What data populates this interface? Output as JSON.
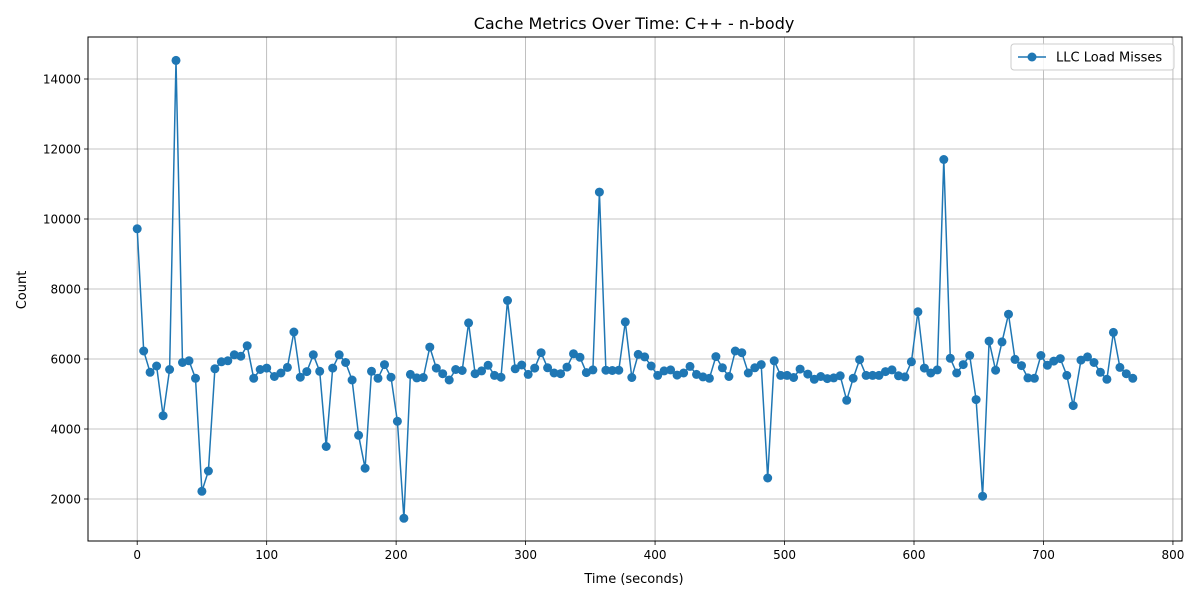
{
  "chart_data": {
    "type": "line",
    "title": "Cache Metrics Over Time: C++ - n-body",
    "xlabel": "Time (seconds)",
    "ylabel": "Count",
    "xlim": [
      -38,
      807
    ],
    "ylim": [
      800,
      15200
    ],
    "x_ticks": [
      0,
      100,
      200,
      300,
      400,
      500,
      600,
      700,
      800
    ],
    "y_ticks": [
      2000,
      4000,
      6000,
      8000,
      10000,
      12000,
      14000
    ],
    "grid": true,
    "legend_position": "top-right",
    "series": [
      {
        "name": "LLC Load Misses",
        "color": "#1f77b4",
        "marker": "circle",
        "x": [
          0,
          5,
          10,
          15,
          20,
          25,
          30,
          35,
          40,
          45,
          50,
          55,
          60,
          65,
          70,
          75,
          80,
          85,
          90,
          95,
          100,
          106,
          111,
          116,
          121,
          126,
          131,
          136,
          141,
          146,
          151,
          156,
          161,
          166,
          171,
          176,
          181,
          186,
          191,
          196,
          201,
          206,
          211,
          216,
          221,
          226,
          231,
          236,
          241,
          246,
          251,
          256,
          261,
          266,
          271,
          276,
          281,
          286,
          292,
          297,
          302,
          307,
          312,
          317,
          322,
          327,
          332,
          337,
          342,
          347,
          352,
          357,
          362,
          367,
          372,
          377,
          382,
          387,
          392,
          397,
          402,
          407,
          412,
          417,
          422,
          427,
          432,
          437,
          442,
          447,
          452,
          457,
          462,
          467,
          472,
          477,
          482,
          487,
          492,
          497,
          502,
          507,
          512,
          518,
          523,
          528,
          533,
          538,
          543,
          548,
          553,
          558,
          563,
          568,
          573,
          578,
          583,
          588,
          593,
          598,
          603,
          608,
          613,
          618,
          623,
          628,
          633,
          638,
          643,
          648,
          653,
          658,
          663,
          668,
          673,
          678,
          683,
          688,
          693,
          698,
          703,
          708,
          713,
          718,
          723,
          729,
          734,
          739,
          744,
          749,
          754,
          759,
          764,
          769
        ],
        "y": [
          9720,
          6230,
          5620,
          5800,
          4380,
          5700,
          14530,
          5900,
          5950,
          5450,
          2220,
          2800,
          5720,
          5920,
          5950,
          6120,
          6080,
          6380,
          5450,
          5700,
          5740,
          5500,
          5600,
          5760,
          6770,
          5480,
          5640,
          6120,
          5650,
          3500,
          5740,
          6120,
          5900,
          5400,
          3820,
          2880,
          5650,
          5450,
          5840,
          5480,
          4220,
          1450,
          5560,
          5460,
          5470,
          6340,
          5740,
          5580,
          5400,
          5700,
          5670,
          7030,
          5580,
          5660,
          5820,
          5530,
          5480,
          7670,
          5720,
          5830,
          5560,
          5740,
          6180,
          5750,
          5600,
          5580,
          5770,
          6150,
          6050,
          5610,
          5690,
          10770,
          5680,
          5670,
          5680,
          7060,
          5470,
          6130,
          6060,
          5800,
          5530,
          5660,
          5690,
          5540,
          5600,
          5790,
          5560,
          5490,
          5450,
          6070,
          5750,
          5500,
          6230,
          6180,
          5600,
          5750,
          5840,
          2600,
          5950,
          5530,
          5530,
          5470,
          5710,
          5570,
          5420,
          5500,
          5440,
          5460,
          5520,
          4820,
          5450,
          5980,
          5530,
          5530,
          5530,
          5640,
          5690,
          5520,
          5490,
          5920,
          7350,
          5740,
          5600,
          5690,
          11700,
          6020,
          5600,
          5840,
          6100,
          4840,
          2080,
          6510,
          5680,
          6490,
          7280,
          5990,
          5810,
          5460,
          5450,
          6100,
          5820,
          5940,
          6010,
          5530,
          4670,
          5970,
          6060,
          5900,
          5620,
          5420,
          6760,
          5760,
          5580,
          5450
        ]
      }
    ]
  }
}
